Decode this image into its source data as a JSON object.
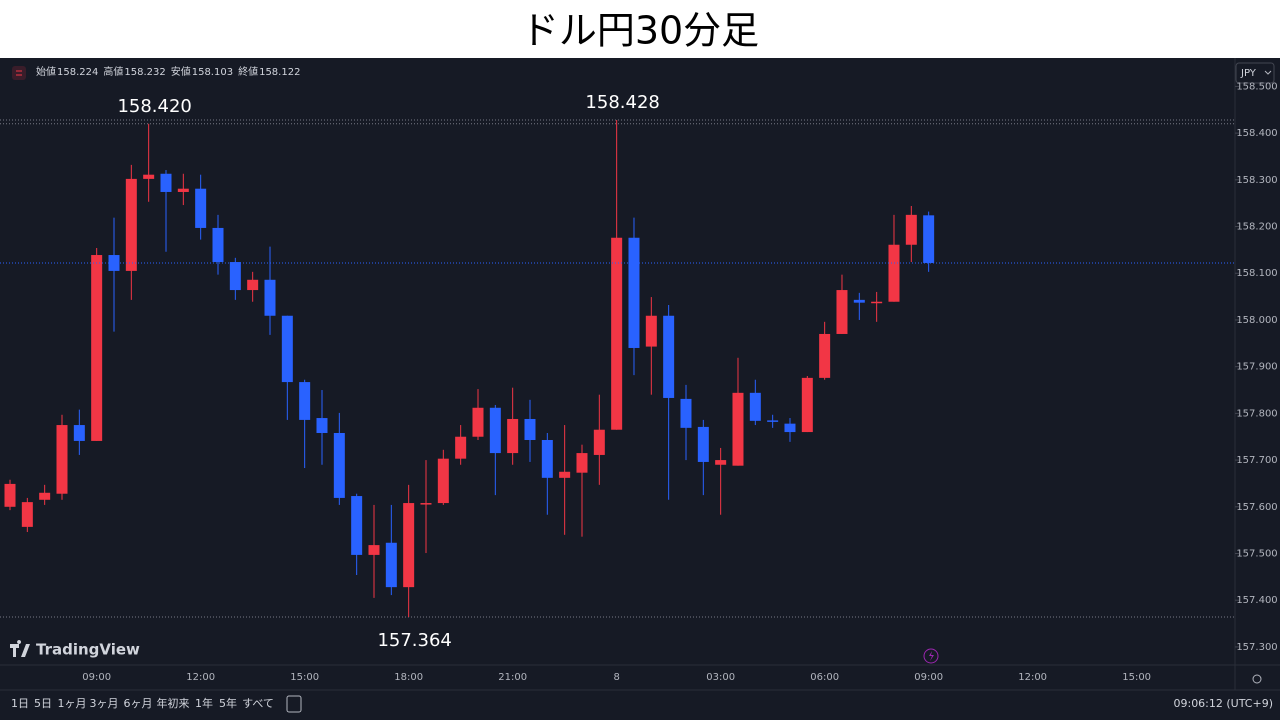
{
  "chart_data": {
    "type": "candlestick",
    "title": "ドル円30分足",
    "currency": "JPY",
    "brand": "TradingView",
    "ohlc_header": [
      {
        "label": "始値",
        "value": 158.224
      },
      {
        "label": "高値",
        "value": 158.232
      },
      {
        "label": "安値",
        "value": 158.103
      },
      {
        "label": "終値",
        "value": 158.122
      }
    ],
    "categories": [
      null,
      null,
      null,
      null,
      null,
      "09:00",
      null,
      null,
      null,
      null,
      null,
      "12:00",
      null,
      null,
      null,
      null,
      null,
      "15:00",
      null,
      null,
      null,
      null,
      null,
      "18:00",
      null,
      null,
      null,
      null,
      null,
      "21:00",
      null,
      null,
      null,
      null,
      null,
      "8",
      null,
      null,
      null,
      null,
      null,
      "03:00",
      null,
      null,
      null,
      null,
      null,
      "06:00",
      null,
      null,
      null,
      null,
      null,
      "09:00",
      null,
      null,
      null,
      null,
      null,
      "12:00",
      null,
      null,
      null,
      null,
      null,
      "15:00",
      null,
      null,
      null,
      null,
      null
    ],
    "open": [
      157.6,
      157.557,
      157.615,
      157.628,
      157.775,
      157.741,
      158.139,
      158.105,
      158.302,
      158.313,
      158.274,
      158.281,
      158.197,
      158.124,
      158.064,
      158.086,
      158.009,
      157.867,
      157.79,
      157.758,
      157.623,
      157.497,
      157.523,
      157.428,
      157.607,
      157.608,
      157.703,
      157.75,
      157.812,
      157.715,
      157.788,
      157.743,
      157.662,
      157.673,
      157.711,
      157.765,
      158.176,
      157.943,
      158.009,
      157.831,
      157.771,
      157.69,
      157.688,
      157.844,
      157.785,
      157.778,
      157.76,
      157.876,
      157.97,
      158.043,
      158.038,
      158.039,
      158.161,
      158.224,
      null,
      null,
      null,
      null,
      null,
      null,
      null,
      null,
      null,
      null,
      null,
      null,
      null,
      null,
      null,
      null,
      null
    ],
    "high": [
      157.658,
      157.619,
      157.647,
      157.797,
      157.808,
      158.154,
      158.219,
      158.332,
      158.42,
      158.321,
      158.313,
      158.311,
      158.225,
      158.133,
      158.103,
      158.157,
      158.009,
      157.872,
      157.85,
      157.801,
      157.628,
      157.604,
      157.604,
      157.647,
      157.7,
      157.722,
      157.775,
      157.852,
      157.818,
      157.855,
      157.829,
      157.758,
      157.775,
      157.733,
      157.84,
      158.428,
      158.219,
      158.049,
      158.032,
      157.861,
      157.786,
      157.726,
      157.919,
      157.872,
      157.797,
      157.79,
      157.88,
      157.996,
      158.097,
      158.058,
      158.06,
      158.225,
      158.244,
      158.232,
      null,
      null,
      null,
      null,
      null,
      null,
      null,
      null,
      null,
      null,
      null,
      null,
      null,
      null,
      null,
      null,
      null
    ],
    "low": [
      157.593,
      157.546,
      157.604,
      157.615,
      157.711,
      157.741,
      157.975,
      158.043,
      158.253,
      158.146,
      158.246,
      158.172,
      158.097,
      158.043,
      158.039,
      157.968,
      157.786,
      157.683,
      157.69,
      157.604,
      157.454,
      157.405,
      157.411,
      157.364,
      157.501,
      157.604,
      157.69,
      157.743,
      157.625,
      157.69,
      157.696,
      157.583,
      157.54,
      157.536,
      157.647,
      157.765,
      157.882,
      157.84,
      157.615,
      157.7,
      157.625,
      157.583,
      157.688,
      157.775,
      157.769,
      157.739,
      157.76,
      157.872,
      157.97,
      158.0,
      157.996,
      158.039,
      158.124,
      158.103,
      null,
      null,
      null,
      null,
      null,
      null,
      null,
      null,
      null,
      null,
      null,
      null,
      null,
      null,
      null,
      null,
      null
    ],
    "close": [
      157.649,
      157.61,
      157.63,
      157.775,
      157.741,
      158.139,
      158.105,
      158.302,
      158.311,
      158.274,
      158.281,
      158.197,
      158.124,
      158.064,
      158.086,
      158.009,
      157.867,
      157.786,
      157.758,
      157.619,
      157.497,
      157.518,
      157.428,
      157.608,
      157.608,
      157.703,
      157.75,
      157.812,
      157.715,
      157.788,
      157.743,
      157.662,
      157.675,
      157.715,
      157.765,
      158.176,
      157.94,
      158.009,
      157.833,
      157.769,
      157.696,
      157.7,
      157.844,
      157.784,
      157.783,
      157.76,
      157.876,
      157.97,
      158.064,
      158.037,
      158.039,
      158.161,
      158.225,
      158.122,
      null,
      null,
      null,
      null,
      null,
      null,
      null,
      null,
      null,
      null,
      null,
      null,
      null,
      null,
      null,
      null,
      null
    ],
    "up_color": "#f23645",
    "down_color": "#2962ff",
    "ylim": [
      157.272,
      158.518
    ],
    "yticks": [
      {
        "value": 157.3,
        "label": "157.300"
      },
      {
        "value": 157.4,
        "label": "157.400"
      },
      {
        "value": 157.5,
        "label": "157.500"
      },
      {
        "value": 157.6,
        "label": "157.600"
      },
      {
        "value": 157.7,
        "label": "157.700"
      },
      {
        "value": 157.8,
        "label": "157.800"
      },
      {
        "value": 157.9,
        "label": "157.900"
      },
      {
        "value": 158.0,
        "label": "158.000"
      },
      {
        "value": 158.1,
        "label": "158.100"
      },
      {
        "value": 158.2,
        "label": "158.200"
      },
      {
        "value": 158.3,
        "label": "158.300"
      },
      {
        "value": 158.4,
        "label": "158.400"
      },
      {
        "value": 158.5,
        "label": "158.500"
      }
    ],
    "annotations": [
      {
        "value": 158.42,
        "label": "158.420"
      },
      {
        "value": 158.428,
        "label": "158.428"
      },
      {
        "value": 157.364,
        "label": "157.364"
      }
    ],
    "periods": [
      "1日",
      "5日",
      "1ヶ月",
      "3ヶ月",
      "6ヶ月",
      "年初来",
      "1年",
      "5年",
      "すべて"
    ],
    "clock": "09:06:12 (UTC+9)"
  }
}
